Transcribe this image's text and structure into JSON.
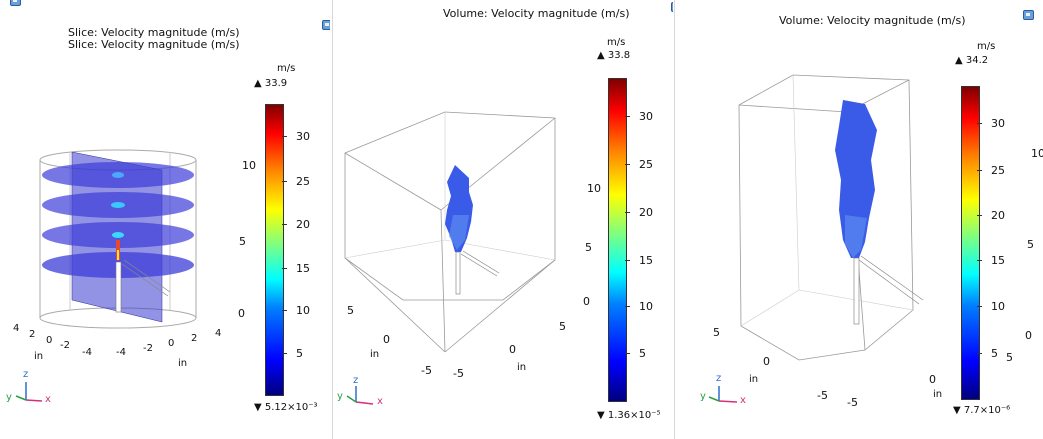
{
  "panel1": {
    "title_line1": "Slice: Velocity magnitude (m/s)",
    "title_line2": "Slice: Velocity magnitude (m/s)",
    "unit": "m/s",
    "max": "▲ 33.9",
    "min": "▼ 5.12×10⁻³",
    "ticks": [
      "30",
      "25",
      "20",
      "15",
      "10",
      "5"
    ],
    "z_labels": [
      "10",
      "5",
      "0"
    ],
    "x_labels": [
      "4",
      "2",
      "0",
      "-2",
      "-4",
      "-4",
      "-2",
      "0",
      "2",
      "4"
    ],
    "x_units": [
      "in",
      "in"
    ],
    "triad": {
      "z": "z",
      "y": "y",
      "x": "x"
    }
  },
  "panel2": {
    "title": "Volume: Velocity magnitude (m/s)",
    "unit": "m/s",
    "max": "▲ 33.8",
    "min": "▼ 1.36×10⁻⁵",
    "ticks": [
      "30",
      "25",
      "20",
      "15",
      "10",
      "5"
    ],
    "z_labels": [
      "10",
      "5",
      "0"
    ],
    "x_labels": [
      "5",
      "0",
      "-5",
      "-5",
      "0",
      "5"
    ],
    "x_units": [
      "in",
      "in"
    ],
    "triad": {
      "z": "z",
      "y": "y",
      "x": "x"
    }
  },
  "panel3": {
    "title": "Volume: Velocity magnitude (m/s)",
    "unit": "m/s",
    "max": "▲ 34.2",
    "min": "▼ 7.7×10⁻⁶",
    "ticks": [
      "30",
      "25",
      "20",
      "15",
      "10",
      "5"
    ],
    "z_labels": [
      "10",
      "5",
      "0",
      "5"
    ],
    "x_labels": [
      "5",
      "0",
      "-5",
      "-5",
      "0"
    ],
    "x_units": [
      "in",
      "in"
    ],
    "triad": {
      "z": "z",
      "y": "y",
      "x": "x"
    }
  }
}
